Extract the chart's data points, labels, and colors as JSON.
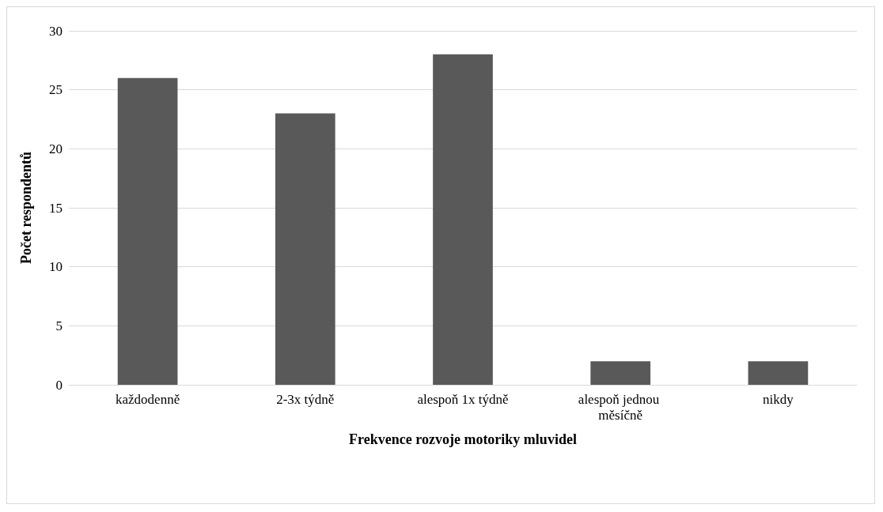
{
  "chart_data": {
    "type": "bar",
    "xlabel": "Frekvence rozvoje motoriky mluvidel",
    "ylabel": "Počet respondentů",
    "categories": [
      "každodenně",
      "2-3x týdně",
      "alespoň 1x týdně",
      "alespoň jednou měsíčně",
      "nikdy"
    ],
    "values": [
      26,
      23,
      28,
      2,
      2
    ],
    "color": "#595959",
    "ylim": [
      0,
      30
    ],
    "yticks": [
      0,
      5,
      10,
      15,
      20,
      25,
      30
    ],
    "grid": "y"
  }
}
